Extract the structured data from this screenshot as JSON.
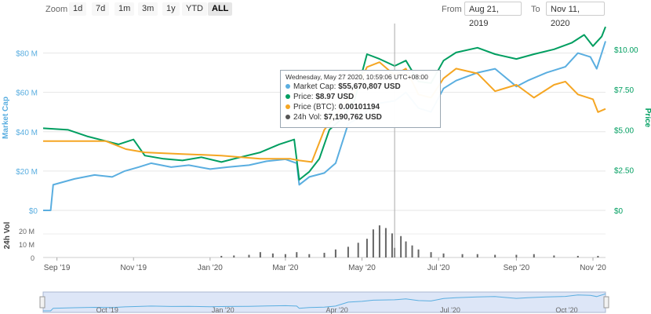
{
  "toolbar": {
    "zoom_label": "Zoom",
    "buttons": [
      "1d",
      "7d",
      "1m",
      "3m",
      "1y",
      "YTD",
      "ALL"
    ],
    "active": "ALL",
    "from_label": "From",
    "from_value": "Aug 21, 2019",
    "to_label": "To",
    "to_value": "Nov 11, 2020"
  },
  "tooltip": {
    "date": "Wednesday, May 27 2020, 10:59:06 UTC+08:00",
    "rows": [
      {
        "label": "Market Cap: ",
        "value": "$55,670,807 USD",
        "color": "#5aaee0"
      },
      {
        "label": "Price: ",
        "value": "$8.97 USD",
        "color": "#009e60"
      },
      {
        "label": "Price (BTC): ",
        "value": "0.00101194",
        "color": "#f5a623"
      },
      {
        "label": "24h Vol: ",
        "value": "$7,190,762 USD",
        "color": "#555555"
      }
    ]
  },
  "chart_data": {
    "type": "line",
    "x_ticks": [
      "Sep '19",
      "Nov '19",
      "Jan '20",
      "Mar '20",
      "May '20",
      "Jul '20",
      "Sep '20",
      "Nov '20"
    ],
    "left_axis": {
      "label": "Market Cap",
      "ticks": [
        "$0",
        "$20 M",
        "$40 M",
        "$60 M",
        "$80 M"
      ],
      "range": [
        0,
        95
      ]
    },
    "right_axis": {
      "label": "Price",
      "ticks": [
        "$0",
        "$2.50",
        "$5.00",
        "$7.50",
        "$10.00"
      ],
      "range": [
        0,
        11.6
      ]
    },
    "volume_axis": {
      "label": "24h Vol",
      "ticks": [
        "0",
        "10 M",
        "20 M"
      ],
      "range": [
        0,
        27
      ]
    },
    "navigator_ticks": [
      "Oct '19",
      "Jan '20",
      "Apr '20",
      "Jul '20",
      "Oct '20"
    ],
    "time_range": [
      "2019-08-21",
      "2020-11-11"
    ],
    "crosshair_date": "2020-05-27",
    "colors": {
      "market_cap": "#5aaee0",
      "price": "#009e60",
      "price_btc": "#f5a623",
      "volume": "#666666",
      "left_axis": "#5aaee0",
      "right_axis": "#009e60"
    },
    "series": [
      {
        "name": "Market Cap",
        "axis": "left",
        "points": [
          [
            "2019-08-21",
            0
          ],
          [
            "2019-08-27",
            0
          ],
          [
            "2019-08-29",
            13
          ],
          [
            "2019-09-15",
            16
          ],
          [
            "2019-10-01",
            18
          ],
          [
            "2019-10-15",
            17
          ],
          [
            "2019-10-25",
            20
          ],
          [
            "2019-11-05",
            22
          ],
          [
            "2019-11-15",
            24
          ],
          [
            "2019-12-01",
            22
          ],
          [
            "2019-12-15",
            23
          ],
          [
            "2020-01-01",
            21
          ],
          [
            "2020-01-15",
            22
          ],
          [
            "2020-02-01",
            23
          ],
          [
            "2020-02-15",
            25
          ],
          [
            "2020-03-01",
            26
          ],
          [
            "2020-03-10",
            24
          ],
          [
            "2020-03-12",
            13
          ],
          [
            "2020-03-20",
            17
          ],
          [
            "2020-04-01",
            19
          ],
          [
            "2020-04-10",
            24
          ],
          [
            "2020-04-20",
            44
          ],
          [
            "2020-05-01",
            48
          ],
          [
            "2020-05-10",
            54
          ],
          [
            "2020-05-27",
            55.7
          ],
          [
            "2020-06-05",
            60
          ],
          [
            "2020-06-15",
            52
          ],
          [
            "2020-06-25",
            50
          ],
          [
            "2020-07-05",
            62
          ],
          [
            "2020-07-15",
            66
          ],
          [
            "2020-08-01",
            70
          ],
          [
            "2020-08-15",
            72
          ],
          [
            "2020-09-01",
            63
          ],
          [
            "2020-09-10",
            66
          ],
          [
            "2020-09-25",
            70
          ],
          [
            "2020-10-10",
            73
          ],
          [
            "2020-10-20",
            80
          ],
          [
            "2020-10-30",
            78
          ],
          [
            "2020-11-04",
            72
          ],
          [
            "2020-11-11",
            86
          ]
        ]
      },
      {
        "name": "Price",
        "axis": "right",
        "points": [
          [
            "2019-08-21",
            5.1
          ],
          [
            "2019-09-10",
            5.0
          ],
          [
            "2019-09-25",
            4.6
          ],
          [
            "2019-10-05",
            4.4
          ],
          [
            "2019-10-20",
            4.1
          ],
          [
            "2019-11-01",
            4.4
          ],
          [
            "2019-11-10",
            3.4
          ],
          [
            "2019-11-25",
            3.2
          ],
          [
            "2019-12-10",
            3.1
          ],
          [
            "2019-12-25",
            3.3
          ],
          [
            "2020-01-10",
            3.0
          ],
          [
            "2020-01-25",
            3.3
          ],
          [
            "2020-02-10",
            3.6
          ],
          [
            "2020-02-25",
            4.1
          ],
          [
            "2020-03-08",
            4.4
          ],
          [
            "2020-03-12",
            1.9
          ],
          [
            "2020-03-20",
            2.4
          ],
          [
            "2020-03-28",
            3.2
          ],
          [
            "2020-04-05",
            5.0
          ],
          [
            "2020-04-15",
            5.7
          ],
          [
            "2020-04-25",
            6.8
          ],
          [
            "2020-05-05",
            9.7
          ],
          [
            "2020-05-15",
            9.4
          ],
          [
            "2020-05-27",
            8.97
          ],
          [
            "2020-06-05",
            9.3
          ],
          [
            "2020-06-15",
            8.0
          ],
          [
            "2020-06-25",
            7.9
          ],
          [
            "2020-07-05",
            9.3
          ],
          [
            "2020-07-15",
            9.8
          ],
          [
            "2020-08-01",
            10.1
          ],
          [
            "2020-08-15",
            9.7
          ],
          [
            "2020-09-01",
            9.4
          ],
          [
            "2020-09-15",
            9.7
          ],
          [
            "2020-10-01",
            10.0
          ],
          [
            "2020-10-15",
            10.4
          ],
          [
            "2020-10-25",
            10.9
          ],
          [
            "2020-11-01",
            10.2
          ],
          [
            "2020-11-08",
            10.8
          ],
          [
            "2020-11-11",
            11.4
          ]
        ]
      },
      {
        "name": "Price (BTC)",
        "axis": "right",
        "points": [
          [
            "2019-08-21",
            4.3
          ],
          [
            "2019-09-20",
            4.3
          ],
          [
            "2019-10-10",
            4.3
          ],
          [
            "2019-10-26",
            3.8
          ],
          [
            "2019-11-10",
            3.6
          ],
          [
            "2019-12-10",
            3.5
          ],
          [
            "2020-01-10",
            3.4
          ],
          [
            "2020-02-10",
            3.2
          ],
          [
            "2020-03-05",
            3.2
          ],
          [
            "2020-03-12",
            3.1
          ],
          [
            "2020-03-22",
            3.0
          ],
          [
            "2020-04-01",
            5.0
          ],
          [
            "2020-04-15",
            6.4
          ],
          [
            "2020-04-25",
            7.3
          ],
          [
            "2020-05-05",
            8.9
          ],
          [
            "2020-05-15",
            9.2
          ],
          [
            "2020-05-27",
            8.4
          ],
          [
            "2020-06-05",
            8.8
          ],
          [
            "2020-06-15",
            7.2
          ],
          [
            "2020-06-25",
            7.0
          ],
          [
            "2020-07-05",
            8.2
          ],
          [
            "2020-07-15",
            8.8
          ],
          [
            "2020-08-01",
            8.5
          ],
          [
            "2020-08-15",
            7.4
          ],
          [
            "2020-09-01",
            7.8
          ],
          [
            "2020-09-15",
            7.0
          ],
          [
            "2020-10-01",
            7.8
          ],
          [
            "2020-10-10",
            8.0
          ],
          [
            "2020-10-20",
            7.2
          ],
          [
            "2020-11-01",
            6.9
          ],
          [
            "2020-11-05",
            6.1
          ],
          [
            "2020-11-11",
            6.3
          ]
        ]
      }
    ],
    "volume": [
      [
        "2020-01-10",
        1.2
      ],
      [
        "2020-01-20",
        1.5
      ],
      [
        "2020-02-01",
        2.0
      ],
      [
        "2020-02-10",
        4.0
      ],
      [
        "2020-02-20",
        3.0
      ],
      [
        "2020-03-01",
        2.5
      ],
      [
        "2020-03-10",
        4.0
      ],
      [
        "2020-03-20",
        2.5
      ],
      [
        "2020-04-01",
        3.5
      ],
      [
        "2020-04-10",
        6.0
      ],
      [
        "2020-04-20",
        8.0
      ],
      [
        "2020-04-28",
        11.0
      ],
      [
        "2020-05-05",
        14.0
      ],
      [
        "2020-05-10",
        21.0
      ],
      [
        "2020-05-15",
        24.0
      ],
      [
        "2020-05-20",
        22.0
      ],
      [
        "2020-05-25",
        18.0
      ],
      [
        "2020-05-27",
        7.2
      ],
      [
        "2020-06-01",
        16.0
      ],
      [
        "2020-06-05",
        12.0
      ],
      [
        "2020-06-10",
        9.0
      ],
      [
        "2020-06-15",
        6.0
      ],
      [
        "2020-06-25",
        4.0
      ],
      [
        "2020-07-05",
        3.0
      ],
      [
        "2020-07-20",
        2.5
      ],
      [
        "2020-08-01",
        2.5
      ],
      [
        "2020-08-15",
        2.0
      ],
      [
        "2020-09-01",
        2.0
      ],
      [
        "2020-09-15",
        2.5
      ],
      [
        "2020-10-01",
        1.5
      ],
      [
        "2020-10-20",
        1.2
      ],
      [
        "2020-11-05",
        1.2
      ]
    ]
  }
}
